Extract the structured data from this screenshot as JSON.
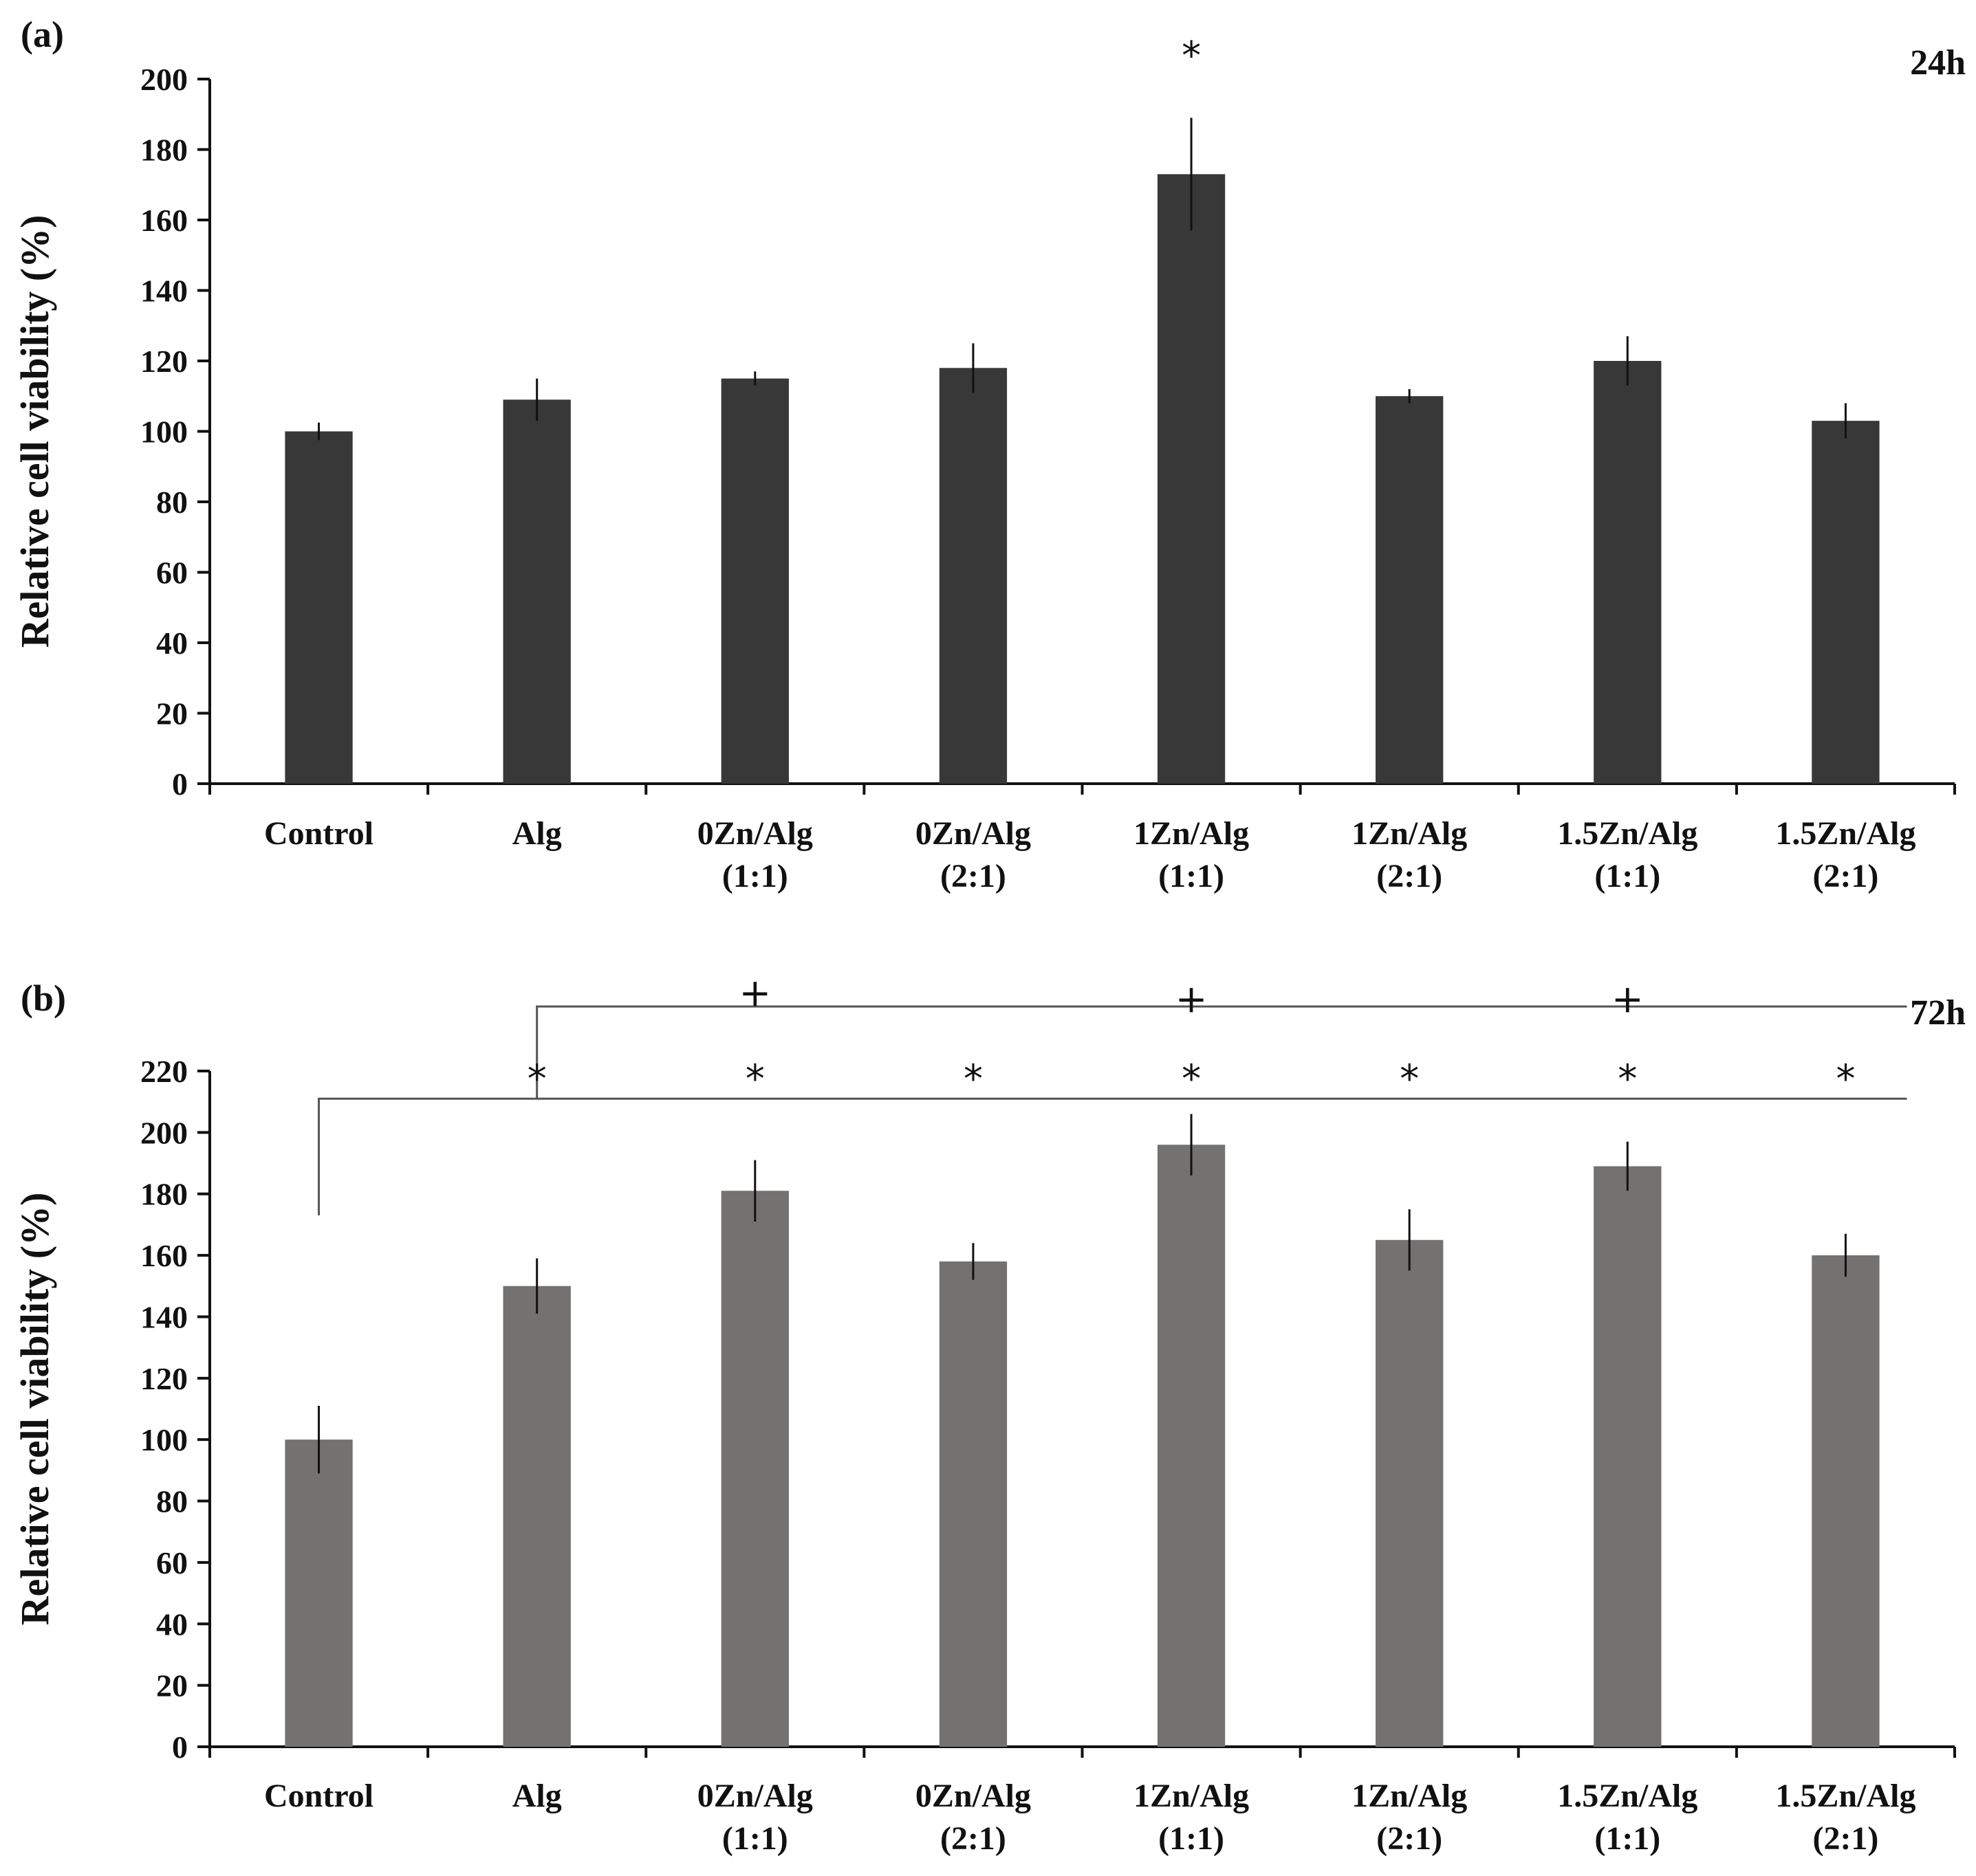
{
  "chart_data": [
    {
      "type": "bar",
      "panel_label": "(a)",
      "time_label": "24h",
      "ylabel": "Relative cell viability (%)",
      "xlabel": "",
      "ylim": [
        0,
        200
      ],
      "ytick_step": 20,
      "bar_color": "#383838",
      "categories": [
        [
          "Control"
        ],
        [
          "Alg"
        ],
        [
          "0Zn/Alg",
          "(1:1)"
        ],
        [
          "0Zn/Alg",
          "(2:1)"
        ],
        [
          "1Zn/Alg",
          "(1:1)"
        ],
        [
          "1Zn/Alg",
          "(2:1)"
        ],
        [
          "1.5Zn/Alg",
          "(1:1)"
        ],
        [
          "1.5Zn/Alg",
          "(2:1)"
        ]
      ],
      "values": [
        100,
        109,
        115,
        118,
        173,
        110,
        120,
        103
      ],
      "errors": [
        2.5,
        6,
        2,
        7,
        16,
        2,
        7,
        5
      ],
      "markers": [
        {
          "index": 4,
          "symbol": "*",
          "at_value": 208
        }
      ],
      "brackets": []
    },
    {
      "type": "bar",
      "panel_label": "(b)",
      "time_label": "72h",
      "ylabel": "Relative cell viability (%)",
      "xlabel": "",
      "ylim": [
        0,
        220
      ],
      "ytick_step": 20,
      "bar_color": "#747171",
      "categories": [
        [
          "Control"
        ],
        [
          "Alg"
        ],
        [
          "0Zn/Alg",
          "(1:1)"
        ],
        [
          "0Zn/Alg",
          "(2:1)"
        ],
        [
          "1Zn/Alg",
          "(1:1)"
        ],
        [
          "1Zn/Alg",
          "(2:1)"
        ],
        [
          "1.5Zn/Alg",
          "(1:1)"
        ],
        [
          "1.5Zn/Alg",
          "(2:1)"
        ]
      ],
      "values": [
        100,
        150,
        181,
        158,
        196,
        165,
        189,
        160
      ],
      "errors": [
        11,
        9,
        10,
        6,
        10,
        10,
        8,
        7
      ],
      "markers": [
        {
          "index": 1,
          "symbol": "*",
          "at_value": 219
        },
        {
          "index": 2,
          "symbol": "*",
          "at_value": 219
        },
        {
          "index": 3,
          "symbol": "*",
          "at_value": 219
        },
        {
          "index": 4,
          "symbol": "*",
          "at_value": 219
        },
        {
          "index": 5,
          "symbol": "*",
          "at_value": 219
        },
        {
          "index": 6,
          "symbol": "*",
          "at_value": 219
        },
        {
          "index": 7,
          "symbol": "*",
          "at_value": 219
        },
        {
          "index": 2,
          "symbol": "+",
          "at_value": 247
        },
        {
          "index": 4,
          "symbol": "+",
          "at_value": 245
        },
        {
          "index": 6,
          "symbol": "+",
          "at_value": 245
        }
      ],
      "brackets": [
        {
          "from_index": 0,
          "to_index": 7,
          "level": 211,
          "drop_to": 173
        },
        {
          "from_index": 1,
          "to_index": 7,
          "level": 241,
          "drop_to": 211
        }
      ]
    }
  ]
}
